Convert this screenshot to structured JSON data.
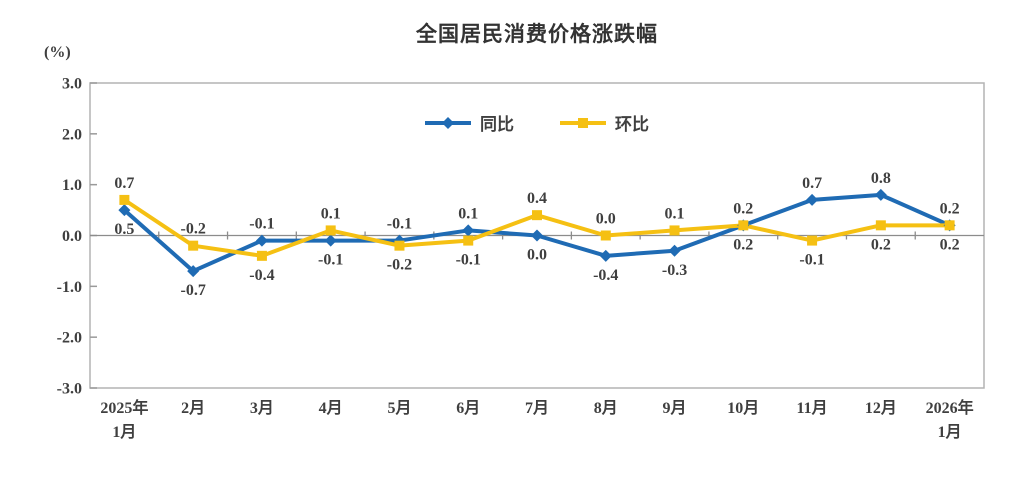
{
  "chart_data": {
    "type": "line",
    "title": "全国居民消费价格涨跌幅",
    "unit_label": "(%)",
    "categories": [
      [
        "2025年",
        "1月"
      ],
      [
        "2月"
      ],
      [
        "3月"
      ],
      [
        "4月"
      ],
      [
        "5月"
      ],
      [
        "6月"
      ],
      [
        "7月"
      ],
      [
        "8月"
      ],
      [
        "9月"
      ],
      [
        "10月"
      ],
      [
        "11月"
      ],
      [
        "12月"
      ],
      [
        "2026年",
        "1月"
      ]
    ],
    "series": [
      {
        "name": "同比",
        "color": "#1F6BB4",
        "marker": "diamond",
        "values": [
          0.5,
          -0.7,
          -0.1,
          -0.1,
          -0.1,
          0.1,
          0.0,
          -0.4,
          -0.3,
          0.2,
          0.7,
          0.8,
          0.2
        ]
      },
      {
        "name": "环比",
        "color": "#F5C013",
        "marker": "square",
        "values": [
          0.7,
          -0.2,
          -0.4,
          0.1,
          -0.2,
          -0.1,
          0.4,
          0.0,
          0.1,
          0.2,
          -0.1,
          0.2,
          0.2
        ]
      }
    ],
    "ylim": [
      -3.0,
      3.0
    ],
    "ytick_step": 1.0,
    "ytick_labels": [
      "3.0",
      "2.0",
      "1.0",
      "0.0",
      "-1.0",
      "-2.0",
      "-3.0"
    ],
    "data_labels": true,
    "grid": "zero-line-only",
    "legend_position": "top-center",
    "colors": {
      "plot_border": "#b3b3b3",
      "zero_line": "#8c8c8c",
      "tick": "#9a9a9a",
      "text": "#3f3f3f",
      "title_text": "#333333"
    }
  }
}
